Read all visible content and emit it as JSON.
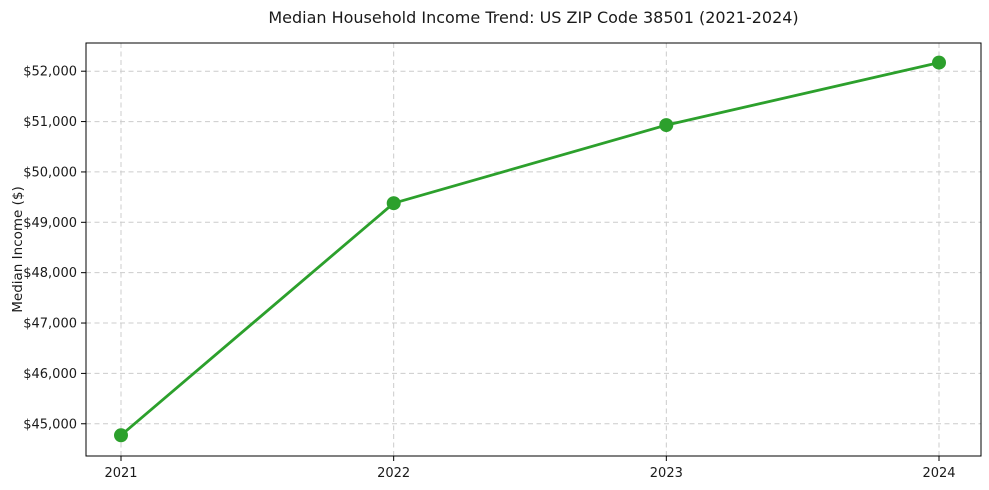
{
  "page": {
    "background": "#ffffff"
  },
  "chart_data": {
    "type": "line",
    "title": "Median Household Income Trend: US ZIP Code 38501 (2021-2024)",
    "xlabel": "",
    "ylabel": "Median Income ($)",
    "x": [
      "2021",
      "2022",
      "2023",
      "2024"
    ],
    "series": [
      {
        "name": "Median Household Income",
        "values": [
          44770,
          49380,
          50930,
          52170
        ],
        "color": "#2ca02c",
        "marker": "circle"
      }
    ],
    "ylim": [
      44360,
      52560
    ],
    "yticks": [
      45000,
      46000,
      47000,
      48000,
      49000,
      50000,
      51000,
      52000
    ],
    "ytick_prefix": "$",
    "grid": {
      "visible": true,
      "style": "dashed",
      "color": "#cccccc"
    },
    "legend_position": "none",
    "axis_color": "#000000",
    "text_color": "#1a1a1a"
  }
}
